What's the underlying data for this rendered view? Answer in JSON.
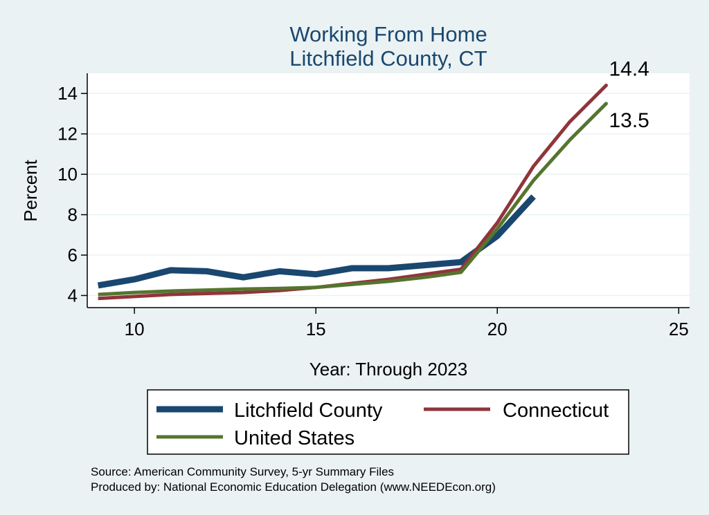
{
  "chart_data": {
    "type": "line",
    "title": "Working From Home",
    "subtitle": "Litchfield County, CT",
    "xlabel": "Year: Through 2023",
    "ylabel": "Percent",
    "xlim": [
      8.7,
      25.3
    ],
    "ylim": [
      3.4,
      15.0
    ],
    "xticks": [
      10,
      15,
      20,
      25
    ],
    "yticks": [
      4,
      6,
      8,
      10,
      12,
      14
    ],
    "grid": true,
    "legend_position": "bottom",
    "series": [
      {
        "name": "Litchfield County",
        "color": "#1a476f",
        "x": [
          9,
          10,
          11,
          12,
          13,
          14,
          15,
          16,
          17,
          18,
          19,
          20,
          21
        ],
        "y": [
          4.5,
          4.8,
          5.25,
          5.2,
          4.9,
          5.2,
          5.05,
          5.35,
          5.35,
          5.5,
          5.65,
          6.95,
          8.9
        ]
      },
      {
        "name": "Connecticut",
        "color": "#90353b",
        "x": [
          9,
          10,
          11,
          12,
          13,
          14,
          15,
          16,
          17,
          18,
          19,
          20,
          21,
          22,
          23
        ],
        "y": [
          3.85,
          3.95,
          4.05,
          4.1,
          4.15,
          4.25,
          4.4,
          4.6,
          4.8,
          5.05,
          5.3,
          7.6,
          10.4,
          12.6,
          14.4
        ]
      },
      {
        "name": "United States",
        "color": "#55752f",
        "x": [
          9,
          10,
          11,
          12,
          13,
          14,
          15,
          16,
          17,
          18,
          19,
          20,
          21,
          22,
          23
        ],
        "y": [
          4.05,
          4.15,
          4.22,
          4.27,
          4.32,
          4.35,
          4.4,
          4.55,
          4.7,
          4.9,
          5.15,
          7.3,
          9.7,
          11.7,
          13.5
        ]
      }
    ],
    "end_labels": [
      {
        "series": "Connecticut",
        "text": "14.4"
      },
      {
        "series": "United States",
        "text": "13.5"
      }
    ]
  },
  "notes": {
    "source": "Source: American Community Survey, 5-yr Summary Files",
    "produced_by": "Produced by: National Economic Education Delegation (www.NEEDEcon.org)"
  }
}
